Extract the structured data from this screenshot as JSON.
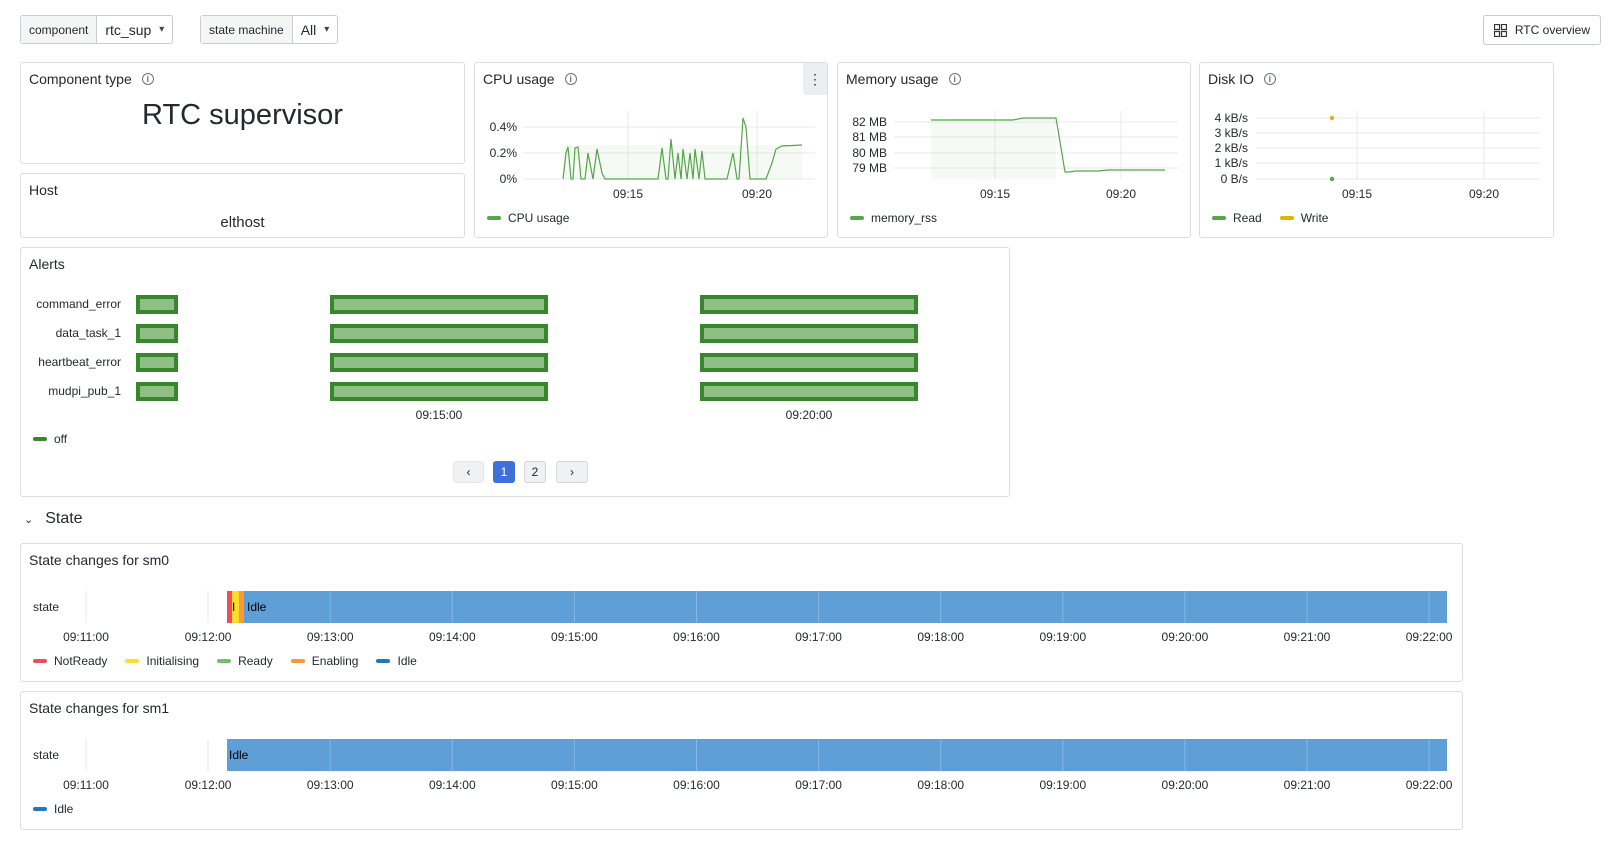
{
  "filters": {
    "component": {
      "label": "component",
      "value": "rtc_sup"
    },
    "state_machine": {
      "label": "state machine",
      "value": "All"
    }
  },
  "overview_button": {
    "label": "RTC overview",
    "icon": "grid-icon"
  },
  "component_type": {
    "title": "Component type",
    "value": "RTC supervisor"
  },
  "host": {
    "title": "Host",
    "value": "elthost"
  },
  "cpu": {
    "title": "CPU usage",
    "yticks": [
      "0.4%",
      "0.2%",
      "0%"
    ],
    "xticks": [
      "09:15",
      "09:20"
    ],
    "legend": "CPU usage",
    "color": "#56a64b"
  },
  "memory": {
    "title": "Memory usage",
    "yticks": [
      "82 MB",
      "81 MB",
      "80 MB",
      "79 MB"
    ],
    "xticks": [
      "09:15",
      "09:20"
    ],
    "legend": "memory_rss",
    "color": "#56a64b"
  },
  "disk": {
    "title": "Disk IO",
    "yticks": [
      "4 kB/s",
      "3 kB/s",
      "2 kB/s",
      "1 kB/s",
      "0 B/s"
    ],
    "xticks": [
      "09:15",
      "09:20"
    ],
    "legend": [
      {
        "name": "Read",
        "color": "#56a64b"
      },
      {
        "name": "Write",
        "color": "#e0b400"
      }
    ]
  },
  "alerts": {
    "title": "Alerts",
    "rows": [
      "command_error",
      "data_task_1",
      "heartbeat_error",
      "mudpi_pub_1"
    ],
    "xticks": [
      "09:15:00",
      "09:20:00"
    ],
    "legend": "off",
    "color": "#37872d",
    "pagination": {
      "prev": "‹",
      "pages": [
        "1",
        "2"
      ],
      "current": "1",
      "next": "›"
    }
  },
  "section": {
    "title": "State"
  },
  "sm0": {
    "title": "State changes for sm0",
    "row_label": "state",
    "segment_labels": [
      "I",
      "Idle"
    ],
    "xticks": [
      "09:11:00",
      "09:12:00",
      "09:13:00",
      "09:14:00",
      "09:15:00",
      "09:16:00",
      "09:17:00",
      "09:18:00",
      "09:19:00",
      "09:20:00",
      "09:21:00",
      "09:22:00"
    ],
    "legend": [
      {
        "name": "NotReady",
        "color": "#f2495c"
      },
      {
        "name": "Initialising",
        "color": "#fade2a"
      },
      {
        "name": "Ready",
        "color": "#73bf69"
      },
      {
        "name": "Enabling",
        "color": "#ff9830"
      },
      {
        "name": "Idle",
        "color": "#1f78c1"
      }
    ]
  },
  "sm1": {
    "title": "State changes for sm1",
    "row_label": "state",
    "segment_labels": [
      "Idle"
    ],
    "xticks": [
      "09:11:00",
      "09:12:00",
      "09:13:00",
      "09:14:00",
      "09:15:00",
      "09:16:00",
      "09:17:00",
      "09:18:00",
      "09:19:00",
      "09:20:00",
      "09:21:00",
      "09:22:00"
    ],
    "legend": [
      {
        "name": "Idle",
        "color": "#1f78c1"
      }
    ]
  }
}
